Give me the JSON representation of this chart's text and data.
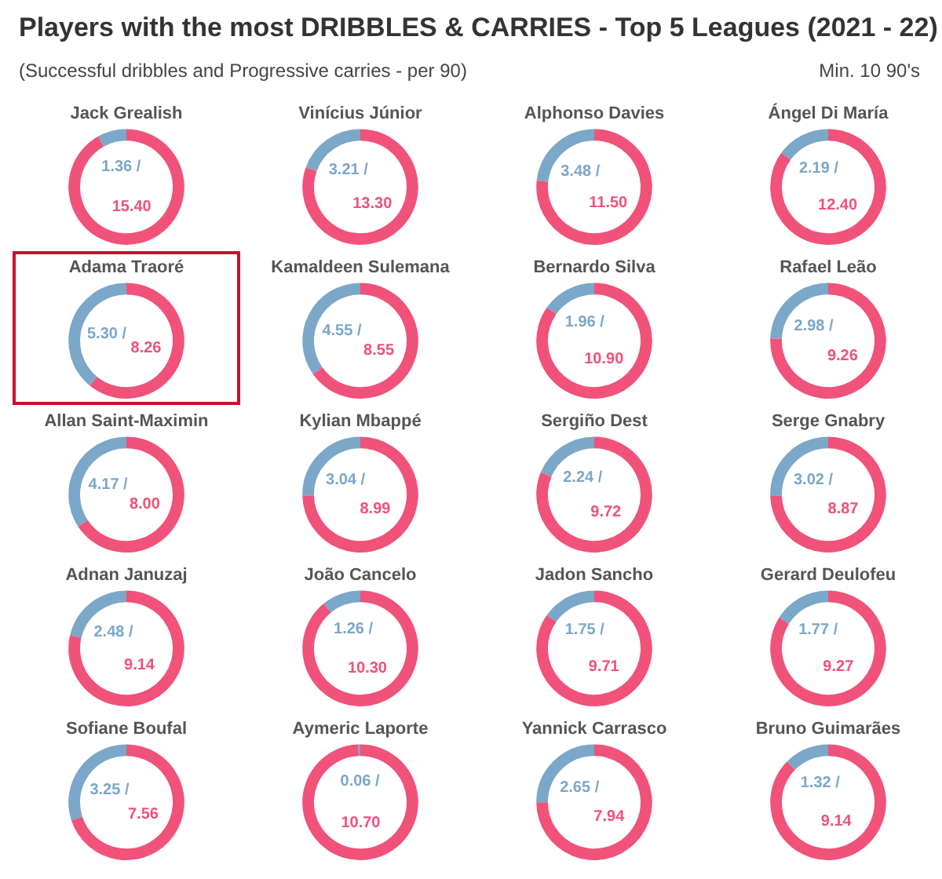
{
  "chart_data": [
    {
      "type": "other",
      "title": "Players with the most DRIBBLES & CARRIES - Top 5 Leagues (2021 - 22)",
      "subtitle": "(Successful dribbles and Progressive carries - per 90)",
      "annotations": [
        "Min. 10 90's"
      ]
    },
    {
      "type": "donut",
      "title": "Jack Grealish",
      "categories": [
        null,
        null
      ],
      "values": [
        1.36,
        15.4
      ],
      "value_labels": [
        "1.36 /",
        "15.40"
      ],
      "colors": [
        "#7ba7c9",
        "#f0527a"
      ]
    },
    {
      "type": "donut",
      "title": "Vinícius Júnior",
      "categories": [
        null,
        null
      ],
      "values": [
        3.21,
        13.3
      ],
      "value_labels": [
        "3.21 /",
        "13.30"
      ],
      "colors": [
        "#7ba7c9",
        "#f0527a"
      ]
    },
    {
      "type": "donut",
      "title": "Alphonso Davies",
      "categories": [
        null,
        null
      ],
      "values": [
        3.48,
        11.5
      ],
      "value_labels": [
        "3.48 /",
        "11.50"
      ],
      "colors": [
        "#7ba7c9",
        "#f0527a"
      ]
    },
    {
      "type": "donut",
      "title": "Ángel Di María",
      "categories": [
        null,
        null
      ],
      "values": [
        2.19,
        12.4
      ],
      "value_labels": [
        "2.19 /",
        "12.40"
      ],
      "colors": [
        "#7ba7c9",
        "#f0527a"
      ]
    },
    {
      "type": "donut",
      "title": "Adama Traoré",
      "categories": [
        null,
        null
      ],
      "values": [
        5.3,
        8.26
      ],
      "value_labels": [
        "5.30 /",
        "8.26"
      ],
      "colors": [
        "#7ba7c9",
        "#f0527a"
      ]
    },
    {
      "type": "donut",
      "title": "Kamaldeen Sulemana",
      "categories": [
        null,
        null
      ],
      "values": [
        4.55,
        8.55
      ],
      "value_labels": [
        "4.55 /",
        "8.55"
      ],
      "colors": [
        "#7ba7c9",
        "#f0527a"
      ]
    },
    {
      "type": "donut",
      "title": "Bernardo Silva",
      "categories": [
        null,
        null
      ],
      "values": [
        1.96,
        10.9
      ],
      "value_labels": [
        "1.96 /",
        "10.90"
      ],
      "colors": [
        "#7ba7c9",
        "#f0527a"
      ]
    },
    {
      "type": "donut",
      "title": "Rafael Leão",
      "categories": [
        null,
        null
      ],
      "values": [
        2.98,
        9.26
      ],
      "value_labels": [
        "2.98 /",
        "9.26"
      ],
      "colors": [
        "#7ba7c9",
        "#f0527a"
      ]
    },
    {
      "type": "donut",
      "title": "Allan Saint-Maximin",
      "categories": [
        null,
        null
      ],
      "values": [
        4.17,
        8.0
      ],
      "value_labels": [
        "4.17 /",
        "8.00"
      ],
      "colors": [
        "#7ba7c9",
        "#f0527a"
      ]
    },
    {
      "type": "donut",
      "title": "Kylian Mbappé",
      "categories": [
        null,
        null
      ],
      "values": [
        3.04,
        8.99
      ],
      "value_labels": [
        "3.04 /",
        "8.99"
      ],
      "colors": [
        "#7ba7c9",
        "#f0527a"
      ]
    },
    {
      "type": "donut",
      "title": "Sergiño Dest",
      "categories": [
        null,
        null
      ],
      "values": [
        2.24,
        9.72
      ],
      "value_labels": [
        "2.24 /",
        "9.72"
      ],
      "colors": [
        "#7ba7c9",
        "#f0527a"
      ]
    },
    {
      "type": "donut",
      "title": "Serge Gnabry",
      "categories": [
        null,
        null
      ],
      "values": [
        3.02,
        8.87
      ],
      "value_labels": [
        "3.02 /",
        "8.87"
      ],
      "colors": [
        "#7ba7c9",
        "#f0527a"
      ]
    },
    {
      "type": "donut",
      "title": "Adnan Januzaj",
      "categories": [
        null,
        null
      ],
      "values": [
        2.48,
        9.14
      ],
      "value_labels": [
        "2.48 /",
        "9.14"
      ],
      "colors": [
        "#7ba7c9",
        "#f0527a"
      ]
    },
    {
      "type": "donut",
      "title": "João Cancelo",
      "categories": [
        null,
        null
      ],
      "values": [
        1.26,
        10.3
      ],
      "value_labels": [
        "1.26 /",
        "10.30"
      ],
      "colors": [
        "#7ba7c9",
        "#f0527a"
      ]
    },
    {
      "type": "donut",
      "title": "Jadon Sancho",
      "categories": [
        null,
        null
      ],
      "values": [
        1.75,
        9.71
      ],
      "value_labels": [
        "1.75 /",
        "9.71"
      ],
      "colors": [
        "#7ba7c9",
        "#f0527a"
      ]
    },
    {
      "type": "donut",
      "title": "Gerard Deulofeu",
      "categories": [
        null,
        null
      ],
      "values": [
        1.77,
        9.27
      ],
      "value_labels": [
        "1.77 /",
        "9.27"
      ],
      "colors": [
        "#7ba7c9",
        "#f0527a"
      ]
    },
    {
      "type": "donut",
      "title": "Sofiane Boufal",
      "categories": [
        null,
        null
      ],
      "values": [
        3.25,
        7.56
      ],
      "value_labels": [
        "3.25 /",
        "7.56"
      ],
      "colors": [
        "#7ba7c9",
        "#f0527a"
      ]
    },
    {
      "type": "donut",
      "title": "Aymeric Laporte",
      "categories": [
        null,
        null
      ],
      "values": [
        0.06,
        10.7
      ],
      "value_labels": [
        "0.06 /",
        "10.70"
      ],
      "colors": [
        "#7ba7c9",
        "#f0527a"
      ]
    },
    {
      "type": "donut",
      "title": "Yannick Carrasco",
      "categories": [
        null,
        null
      ],
      "values": [
        2.65,
        7.94
      ],
      "value_labels": [
        "2.65 /",
        "7.94"
      ],
      "colors": [
        "#7ba7c9",
        "#f0527a"
      ]
    },
    {
      "type": "donut",
      "title": "Bruno Guimarães",
      "categories": [
        null,
        null
      ],
      "values": [
        1.32,
        9.14
      ],
      "value_labels": [
        "1.32 /",
        "9.14"
      ],
      "colors": [
        "#7ba7c9",
        "#f0527a"
      ]
    }
  ]
}
